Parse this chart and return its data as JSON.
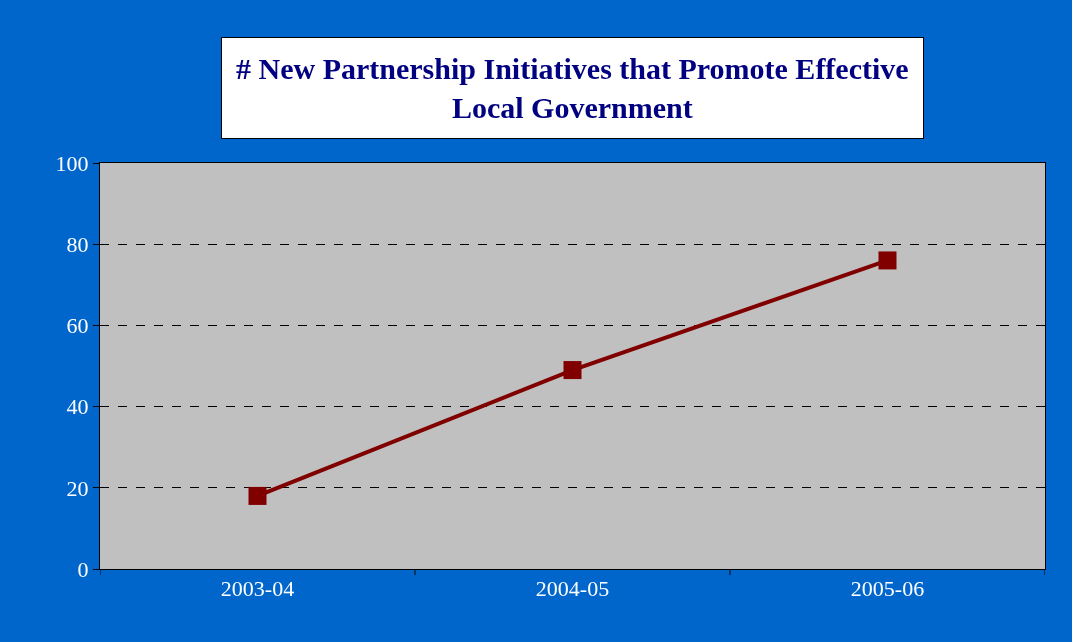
{
  "chart_data": {
    "type": "line",
    "title": "# New Partnership Initiatives that Promote Effective\nLocal Government",
    "categories": [
      "2003-04",
      "2004-05",
      "2005-06"
    ],
    "series": [
      {
        "color": "#800000",
        "values": [
          18,
          49,
          76
        ]
      }
    ],
    "ylim": [
      0,
      100
    ],
    "yticks": [
      0,
      20,
      40,
      60,
      80,
      100
    ],
    "grid": "y",
    "marker": "square",
    "line_style": "solid",
    "legend": false
  }
}
